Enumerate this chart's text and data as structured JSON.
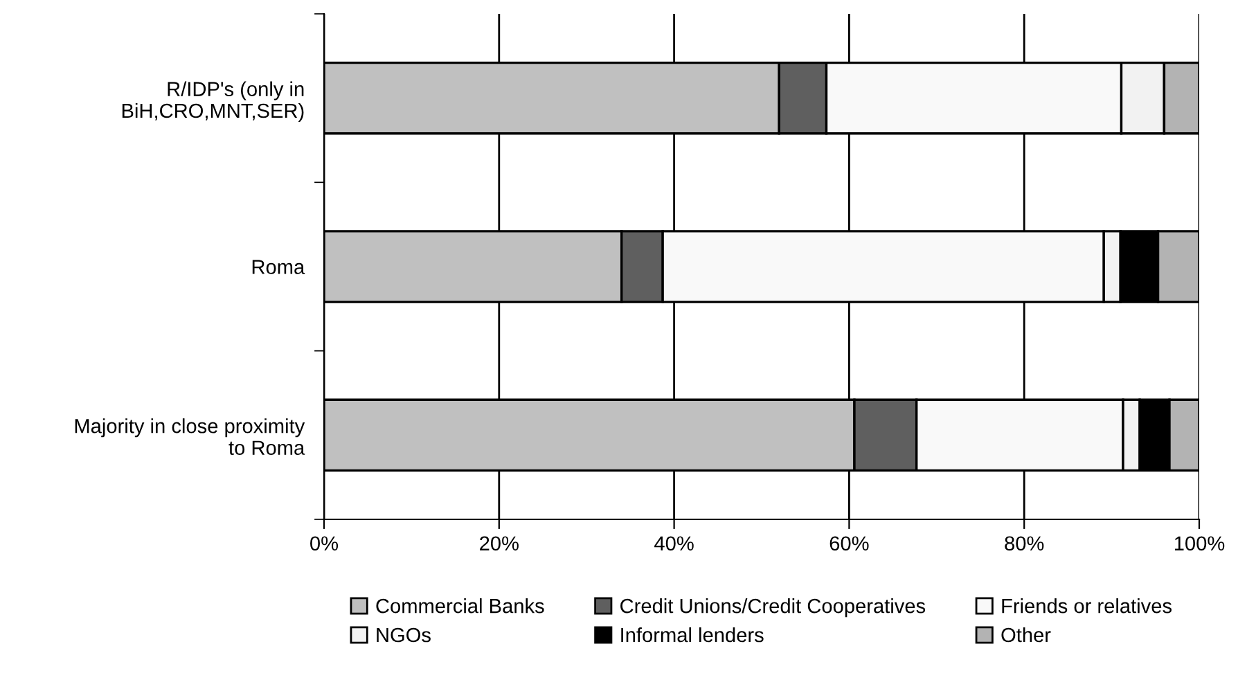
{
  "chart_data": {
    "type": "bar",
    "orientation": "horizontal",
    "stacked": true,
    "categories": [
      "R/IDP's (only in\nBiH,CRO,MNT,SER)",
      "Roma",
      "Majority in close proximity\nto Roma"
    ],
    "series": [
      {
        "name": "Commercial Banks",
        "color": "#c0c0c0",
        "values": [
          52.0,
          34.0,
          60.6
        ]
      },
      {
        "name": "Credit Unions/Credit Cooperatives",
        "color": "#5f5f5f",
        "values": [
          5.4,
          4.7,
          7.1
        ]
      },
      {
        "name": "Friends or relatives",
        "color": "#f9f9f9",
        "values": [
          33.7,
          50.4,
          23.6
        ]
      },
      {
        "name": "NGOs",
        "color": "#f2f2f2",
        "values": [
          4.9,
          1.9,
          1.9
        ]
      },
      {
        "name": "Informal lenders",
        "color": "#000000",
        "values": [
          0,
          4.3,
          3.4
        ]
      },
      {
        "name": "Other",
        "color": "#b3b3b3",
        "values": [
          4.0,
          4.7,
          3.4
        ]
      }
    ],
    "xlim": [
      0,
      100
    ],
    "xticks": [
      {
        "value": 0,
        "label": "0%"
      },
      {
        "value": 20,
        "label": "20%"
      },
      {
        "value": 40,
        "label": "40%"
      },
      {
        "value": 60,
        "label": "60%"
      },
      {
        "value": 80,
        "label": "80%"
      },
      {
        "value": 100,
        "label": "100%"
      }
    ],
    "grid": "x",
    "legend": "bottom"
  }
}
